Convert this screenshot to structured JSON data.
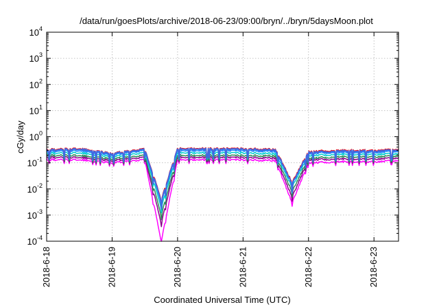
{
  "chart_data": {
    "type": "line",
    "title": "/data/run/goesPlots/archive/2018-06-23/09:00/bryn/../bryn/5daysMoon.plot",
    "xlabel": "Coordinated Universal Time (UTC)",
    "ylabel": "cGy/day",
    "y_scale": "log",
    "ylim": [
      0.0001,
      10000
    ],
    "y_ticks": [
      {
        "base": "10",
        "exp": "-4",
        "value": 0.0001
      },
      {
        "base": "10",
        "exp": "-3",
        "value": 0.001
      },
      {
        "base": "10",
        "exp": "-2",
        "value": 0.01
      },
      {
        "base": "10",
        "exp": "-1",
        "value": 0.1
      },
      {
        "base": "10",
        "exp": "0",
        "value": 1
      },
      {
        "base": "10",
        "exp": "1",
        "value": 10
      },
      {
        "base": "10",
        "exp": "2",
        "value": 100
      },
      {
        "base": "10",
        "exp": "3",
        "value": 1000
      },
      {
        "base": "10",
        "exp": "4",
        "value": 10000
      }
    ],
    "x_range": [
      "2018-06-18",
      "2018-06-23 09:00"
    ],
    "x_ticks": [
      "2018-6-18",
      "2018-6-19",
      "2018-6-20",
      "2018-6-21",
      "2018-6-22",
      "2018-6-23"
    ],
    "grid": true,
    "legend": "none",
    "series": [
      {
        "color": "#ff00ff",
        "x": [
          "2018-06-18",
          "2018-06-18 12:00",
          "2018-06-19",
          "2018-06-19 12:00",
          "2018-06-19 18:00",
          "2018-06-20",
          "2018-06-20 12:00",
          "2018-06-21",
          "2018-06-21 12:00",
          "2018-06-21 18:00",
          "2018-06-22",
          "2018-06-22 12:00",
          "2018-06-23",
          "2018-06-23 09:00"
        ],
        "y": [
          0.13,
          0.13,
          0.1,
          0.13,
          0.0001,
          0.13,
          0.13,
          0.13,
          0.12,
          0.003,
          0.1,
          0.11,
          0.11,
          0.12
        ]
      },
      {
        "color": "#8b008b",
        "x": [
          "2018-06-18",
          "2018-06-18 12:00",
          "2018-06-19",
          "2018-06-19 12:00",
          "2018-06-19 18:00",
          "2018-06-20",
          "2018-06-20 12:00",
          "2018-06-21",
          "2018-06-21 12:00",
          "2018-06-21 18:00",
          "2018-06-22",
          "2018-06-22 12:00",
          "2018-06-23",
          "2018-06-23 09:00"
        ],
        "y": [
          0.16,
          0.16,
          0.12,
          0.16,
          0.0005,
          0.16,
          0.16,
          0.16,
          0.15,
          0.005,
          0.13,
          0.14,
          0.14,
          0.15
        ]
      },
      {
        "color": "#2e8b57",
        "x": [
          "2018-06-18",
          "2018-06-18 12:00",
          "2018-06-19",
          "2018-06-19 12:00",
          "2018-06-19 18:00",
          "2018-06-20",
          "2018-06-20 12:00",
          "2018-06-21",
          "2018-06-21 12:00",
          "2018-06-21 18:00",
          "2018-06-22",
          "2018-06-22 12:00",
          "2018-06-23",
          "2018-06-23 09:00"
        ],
        "y": [
          0.19,
          0.19,
          0.14,
          0.19,
          0.001,
          0.19,
          0.19,
          0.19,
          0.18,
          0.008,
          0.15,
          0.17,
          0.17,
          0.18
        ]
      },
      {
        "color": "#00ced1",
        "x": [
          "2018-06-18",
          "2018-06-18 12:00",
          "2018-06-19",
          "2018-06-19 12:00",
          "2018-06-19 18:00",
          "2018-06-20",
          "2018-06-20 12:00",
          "2018-06-21",
          "2018-06-21 12:00",
          "2018-06-21 18:00",
          "2018-06-22",
          "2018-06-22 12:00",
          "2018-06-23",
          "2018-06-23 09:00"
        ],
        "y": [
          0.23,
          0.24,
          0.17,
          0.24,
          0.002,
          0.24,
          0.24,
          0.24,
          0.22,
          0.012,
          0.19,
          0.21,
          0.21,
          0.22
        ]
      },
      {
        "color": "#1e90ff",
        "x": [
          "2018-06-18",
          "2018-06-18 12:00",
          "2018-06-19",
          "2018-06-19 12:00",
          "2018-06-19 18:00",
          "2018-06-20",
          "2018-06-20 12:00",
          "2018-06-21",
          "2018-06-21 12:00",
          "2018-06-21 18:00",
          "2018-06-22",
          "2018-06-22 12:00",
          "2018-06-23",
          "2018-06-23 09:00"
        ],
        "y": [
          0.27,
          0.29,
          0.2,
          0.29,
          0.003,
          0.29,
          0.29,
          0.29,
          0.27,
          0.015,
          0.23,
          0.25,
          0.25,
          0.27
        ]
      },
      {
        "color": "#ff0000",
        "x": [
          "2018-06-18",
          "2018-06-18 12:00",
          "2018-06-19",
          "2018-06-19 12:00",
          "2018-06-19 18:00",
          "2018-06-20",
          "2018-06-20 12:00",
          "2018-06-21",
          "2018-06-21 12:00",
          "2018-06-21 18:00",
          "2018-06-22",
          "2018-06-22 12:00",
          "2018-06-23",
          "2018-06-23 09:00"
        ],
        "y": [
          0.32,
          0.35,
          0.23,
          0.34,
          0.004,
          0.35,
          0.35,
          0.35,
          0.32,
          0.018,
          0.27,
          0.3,
          0.3,
          0.32
        ]
      },
      {
        "color": "#4169e1",
        "x": [
          "2018-06-18",
          "2018-06-18 12:00",
          "2018-06-19",
          "2018-06-19 12:00",
          "2018-06-19 18:00",
          "2018-06-20",
          "2018-06-20 12:00",
          "2018-06-21",
          "2018-06-21 12:00",
          "2018-06-21 18:00",
          "2018-06-22",
          "2018-06-22 12:00",
          "2018-06-23",
          "2018-06-23 09:00"
        ],
        "y": [
          0.3,
          0.33,
          0.22,
          0.32,
          0.0035,
          0.33,
          0.33,
          0.33,
          0.3,
          0.016,
          0.25,
          0.28,
          0.28,
          0.3
        ]
      }
    ]
  }
}
